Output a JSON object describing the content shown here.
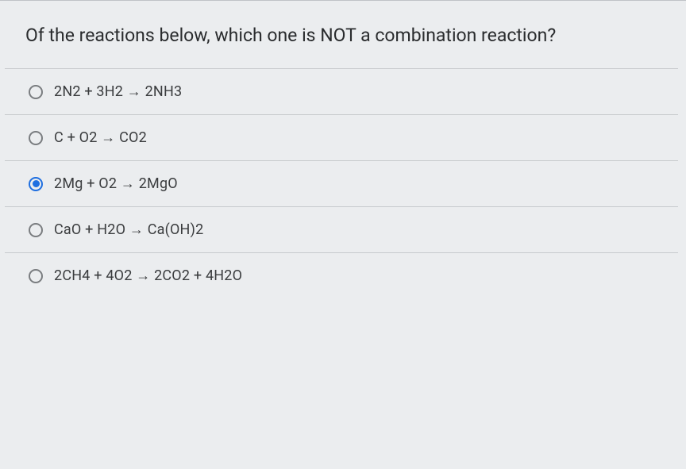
{
  "question": {
    "text": "Of the reactions below, which one is NOT a combination reaction?"
  },
  "options": [
    {
      "label": "2N2 + 3H2 → 2NH3",
      "selected": false
    },
    {
      "label": "C + O2 → CO2",
      "selected": false
    },
    {
      "label": "2Mg + O2 → 2MgO",
      "selected": true
    },
    {
      "label": "CaO + H2O → Ca(OH)2",
      "selected": false
    },
    {
      "label": "2CH4 + 4O2 → 2CO2 + 4H2O",
      "selected": false
    }
  ],
  "styling": {
    "background_color": "#ebedef",
    "border_color": "#c7cacd",
    "question_fontsize": 23,
    "option_fontsize": 18,
    "radio_unselected_border": "#7a7d80",
    "radio_selected_color": "#1f6fe0",
    "text_color": "#2a2c2e"
  }
}
